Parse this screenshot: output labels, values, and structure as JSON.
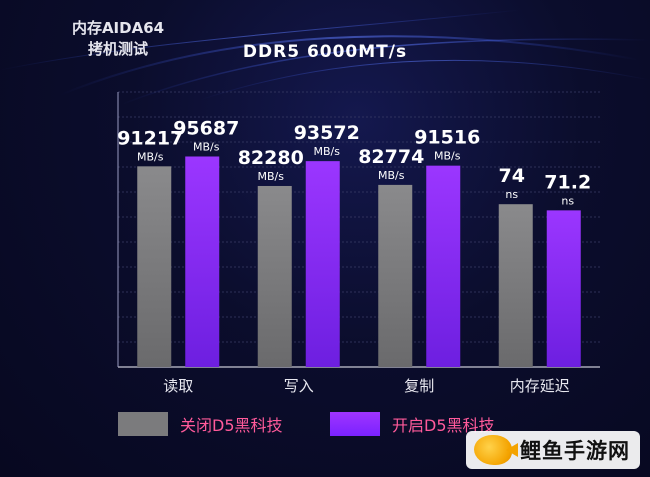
{
  "corner_title": "内存AIDA64\n拷机测试",
  "chart_data": {
    "type": "bar",
    "title": "DDR5 6000MT/s",
    "categories": [
      "读取",
      "写入",
      "复制",
      "内存延迟"
    ],
    "series": [
      {
        "name": "关闭D5黑科技",
        "color": "#7b7b7d",
        "values": [
          91217,
          82280,
          82774,
          74
        ],
        "units": [
          "MB/s",
          "MB/s",
          "MB/s",
          "ns"
        ],
        "labels": [
          "91217",
          "82280",
          "82774",
          "74"
        ]
      },
      {
        "name": "开启D5黑科技",
        "color": "#8a2cff",
        "values": [
          95687,
          93572,
          91516,
          71.2
        ],
        "units": [
          "MB/s",
          "MB/s",
          "MB/s",
          "ns"
        ],
        "labels": [
          "95687",
          "93572",
          "91516",
          "71.2"
        ]
      }
    ],
    "grid": true,
    "legend_position": "bottom-left"
  },
  "legend": {
    "off_label": "关闭D5黑科技",
    "on_label": "开启D5黑科技"
  },
  "watermark": {
    "text": "鲤鱼手游网",
    "logo": "carp-fish-logo"
  }
}
